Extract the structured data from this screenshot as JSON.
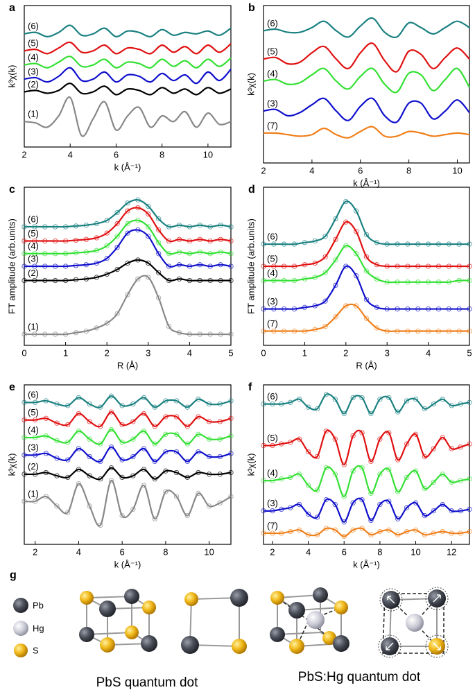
{
  "chart_data": [
    {
      "type": "line",
      "label": "a",
      "y_label": "k³χ(k)",
      "x_label": "k (Å⁻¹)",
      "xlim": [
        2,
        11
      ],
      "ylim": [
        0,
        100
      ],
      "xticks": [
        2,
        4,
        6,
        8,
        10
      ],
      "markers": false,
      "x": [
        2,
        2.5,
        3,
        3.5,
        4,
        4.5,
        5,
        5.5,
        6,
        6.5,
        7,
        7.5,
        8,
        8.5,
        9,
        9.5,
        10,
        10.5,
        11
      ],
      "series": [
        {
          "name": "(6)",
          "color": "#1a8080",
          "values": [
            80,
            81,
            78,
            81,
            86,
            79,
            80,
            84,
            78,
            82,
            81,
            78,
            83,
            79,
            81,
            80,
            82,
            79,
            84
          ]
        },
        {
          "name": "(5)",
          "color": "#e01010",
          "values": [
            68,
            69,
            66,
            70,
            74,
            67,
            68,
            72,
            66,
            70,
            69,
            66,
            72,
            67,
            71,
            66,
            72,
            67,
            73
          ]
        },
        {
          "name": "(4)",
          "color": "#33e033",
          "values": [
            58,
            59,
            56,
            60,
            64,
            57,
            58,
            62,
            56,
            60,
            59,
            56,
            62,
            57,
            61,
            56,
            62,
            57,
            63
          ]
        },
        {
          "name": "(3)",
          "color": "#1010cc",
          "values": [
            48,
            49,
            46,
            50,
            56,
            47,
            48,
            53,
            46,
            51,
            50,
            46,
            52,
            47,
            51,
            45,
            53,
            47,
            55
          ]
        },
        {
          "name": "(2)",
          "color": "#000000",
          "values": [
            39,
            40,
            38,
            40,
            45,
            38,
            39,
            43,
            37,
            41,
            40,
            37,
            42,
            38,
            41,
            37,
            42,
            38,
            41
          ]
        },
        {
          "name": "(1)",
          "color": "#888888",
          "values": [
            18,
            17,
            14,
            22,
            35,
            8,
            20,
            32,
            12,
            22,
            28,
            14,
            22,
            18,
            25,
            14,
            24,
            16,
            18
          ]
        }
      ]
    },
    {
      "type": "line",
      "label": "b",
      "y_label": "k³χ(k)",
      "x_label": "k (Å⁻¹)",
      "xlim": [
        2,
        10.5
      ],
      "ylim": [
        0,
        100
      ],
      "xticks": [
        2,
        4,
        6,
        8,
        10
      ],
      "markers": false,
      "x": [
        2,
        2.5,
        3,
        3.5,
        4,
        4.5,
        5,
        5.5,
        6,
        6.5,
        7,
        7.5,
        8,
        8.5,
        9,
        9.5,
        10,
        10.5
      ],
      "series": [
        {
          "name": "(6)",
          "color": "#1a8080",
          "values": [
            84,
            85,
            83,
            83,
            86,
            90,
            84,
            80,
            87,
            92,
            83,
            80,
            89,
            86,
            82,
            86,
            90,
            86
          ]
        },
        {
          "name": "(5)",
          "color": "#e01010",
          "values": [
            66,
            67,
            63,
            64,
            70,
            74,
            66,
            60,
            70,
            76,
            65,
            58,
            71,
            69,
            60,
            67,
            73,
            66
          ]
        },
        {
          "name": "(4)",
          "color": "#33e033",
          "values": [
            52,
            53,
            50,
            51,
            56,
            60,
            52,
            47,
            55,
            60,
            50,
            45,
            57,
            56,
            46,
            53,
            60,
            48
          ]
        },
        {
          "name": "(3)",
          "color": "#1010cc",
          "values": [
            33,
            34,
            30,
            32,
            37,
            41,
            33,
            27,
            36,
            41,
            30,
            26,
            38,
            38,
            28,
            33,
            40,
            32
          ]
        },
        {
          "name": "(7)",
          "color": "#f07f1a",
          "values": [
            19,
            19,
            18,
            17,
            18,
            22,
            18,
            16,
            20,
            23,
            17,
            17,
            20,
            19,
            17,
            18,
            19,
            18
          ]
        }
      ]
    },
    {
      "type": "line",
      "label": "c",
      "y_label": "FT amplitude (arb.units)",
      "x_label": "R (Å)",
      "xlim": [
        0,
        5
      ],
      "ylim": [
        0,
        100
      ],
      "xticks": [
        0,
        1,
        2,
        3,
        4,
        5
      ],
      "markers": true,
      "x": [
        0,
        0.25,
        0.5,
        0.75,
        1,
        1.25,
        1.5,
        1.75,
        2,
        2.25,
        2.5,
        2.75,
        3,
        3.25,
        3.5,
        3.75,
        4,
        4.25,
        4.5,
        4.75,
        5
      ],
      "series": [
        {
          "name": "(6)",
          "color": "#1a8080",
          "values": [
            75,
            75,
            75,
            75,
            75,
            75.5,
            76,
            77,
            79,
            84,
            90,
            92,
            88,
            80,
            75,
            76,
            75,
            76,
            75,
            76,
            75
          ]
        },
        {
          "name": "(5)",
          "color": "#e01010",
          "values": [
            66,
            66,
            66,
            66,
            66,
            66.5,
            67,
            68,
            71,
            77,
            85,
            87,
            83,
            73,
            66,
            67,
            66,
            67,
            66,
            67,
            66
          ]
        },
        {
          "name": "(4)",
          "color": "#33e033",
          "values": [
            58,
            58,
            58,
            58,
            58,
            58.5,
            59,
            60,
            63,
            69,
            77,
            79,
            75,
            65,
            58,
            59,
            58,
            59,
            58,
            59,
            58
          ]
        },
        {
          "name": "(3)",
          "color": "#1010cc",
          "values": [
            50,
            50,
            50,
            50,
            50,
            50.5,
            51,
            52,
            55,
            62,
            71,
            73,
            69,
            58,
            50,
            51,
            50,
            51,
            50,
            51,
            50
          ]
        },
        {
          "name": "(2)",
          "color": "#000000",
          "values": [
            41,
            41,
            41,
            41,
            41,
            41.5,
            42,
            43,
            45,
            48,
            52,
            54,
            52,
            46,
            41,
            42,
            41,
            41,
            41,
            41,
            41
          ]
        },
        {
          "name": "(1)",
          "color": "#888888",
          "values": [
            7,
            7,
            7,
            7,
            7,
            8,
            9,
            11,
            14,
            20,
            32,
            42,
            43,
            30,
            12,
            8,
            7,
            7,
            7,
            7,
            7
          ]
        }
      ]
    },
    {
      "type": "line",
      "label": "d",
      "y_label": "FT amplitude (arb.units)",
      "x_label": "R (Å)",
      "xlim": [
        0,
        5
      ],
      "ylim": [
        0,
        100
      ],
      "xticks": [
        0,
        1,
        2,
        3,
        4,
        5
      ],
      "markers": true,
      "x": [
        0,
        0.25,
        0.5,
        0.75,
        1,
        1.25,
        1.5,
        1.75,
        2,
        2.25,
        2.5,
        2.75,
        3,
        3.25,
        3.5,
        3.75,
        4,
        4.25,
        4.5,
        4.75,
        5
      ],
      "series": [
        {
          "name": "(6)",
          "color": "#1a8080",
          "values": [
            64,
            64,
            64,
            64,
            65,
            66,
            69,
            80,
            91,
            85,
            70,
            65,
            64,
            64,
            64,
            64,
            64,
            64,
            64,
            64,
            64
          ]
        },
        {
          "name": "(5)",
          "color": "#e01010",
          "values": [
            50,
            50,
            50,
            50,
            51,
            52,
            56,
            67,
            78,
            72,
            56,
            51,
            50,
            50,
            50,
            50,
            50,
            50,
            50,
            50,
            50
          ]
        },
        {
          "name": "(4)",
          "color": "#33e033",
          "values": [
            41,
            41,
            41,
            41,
            42,
            43,
            46,
            54,
            63,
            58,
            47,
            42,
            40,
            40,
            40,
            40,
            40,
            40,
            40,
            41,
            41
          ]
        },
        {
          "name": "(3)",
          "color": "#1010cc",
          "values": [
            23,
            23,
            23,
            23,
            24,
            25,
            28,
            38,
            50,
            44,
            29,
            24,
            23,
            23,
            23,
            23,
            23,
            23,
            23,
            23,
            23
          ]
        },
        {
          "name": "(7)",
          "color": "#f07f1a",
          "values": [
            9,
            9,
            9,
            9,
            9,
            10,
            12,
            18,
            25,
            25,
            17,
            11,
            9,
            9,
            9,
            9,
            9,
            9,
            9,
            9,
            9
          ]
        }
      ]
    },
    {
      "type": "line",
      "label": "e",
      "y_label": "k³χ(k)",
      "x_label": "k (Å⁻¹)",
      "xlim": [
        1.5,
        11
      ],
      "ylim": [
        0,
        100
      ],
      "xticks": [
        2,
        4,
        6,
        8,
        10
      ],
      "markers": true,
      "x": [
        1.5,
        2,
        2.5,
        3,
        3.5,
        4,
        4.5,
        5,
        5.5,
        6,
        6.5,
        7,
        7.5,
        8,
        8.5,
        9,
        9.5,
        10,
        10.5,
        11
      ],
      "series": [
        {
          "name": "(6)",
          "color": "#1a8080",
          "values": [
            89,
            89,
            90,
            88,
            87,
            92,
            88,
            86,
            93,
            87,
            88,
            92,
            86,
            90,
            90,
            86,
            91,
            88,
            88,
            90
          ]
        },
        {
          "name": "(5)",
          "color": "#e01010",
          "values": [
            78,
            78,
            79,
            76,
            75,
            82,
            77,
            74,
            83,
            75,
            77,
            82,
            74,
            80,
            80,
            74,
            80,
            77,
            77,
            79
          ]
        },
        {
          "name": "(4)",
          "color": "#33e033",
          "values": [
            67,
            67,
            68,
            65,
            64,
            71,
            66,
            63,
            72,
            64,
            66,
            71,
            63,
            69,
            69,
            63,
            69,
            66,
            66,
            68
          ]
        },
        {
          "name": "(3)",
          "color": "#1010cc",
          "values": [
            56,
            56,
            57,
            54,
            53,
            60,
            55,
            52,
            61,
            53,
            55,
            60,
            52,
            58,
            58,
            52,
            58,
            55,
            55,
            57
          ]
        },
        {
          "name": "(2)",
          "color": "#000000",
          "values": [
            44,
            44,
            45,
            43,
            42,
            47,
            43,
            41,
            48,
            42,
            43,
            47,
            41,
            46,
            45,
            42,
            45,
            44,
            44,
            45
          ]
        },
        {
          "name": "(1)",
          "color": "#888888",
          "values": [
            27,
            27,
            30,
            24,
            20,
            38,
            24,
            12,
            40,
            18,
            22,
            37,
            16,
            33,
            30,
            18,
            32,
            24,
            26,
            30
          ]
        }
      ]
    },
    {
      "type": "line",
      "label": "f",
      "y_label": "k³χ(k)",
      "x_label": "k (Å⁻¹)",
      "xlim": [
        1.5,
        13
      ],
      "ylim": [
        0,
        100
      ],
      "xticks": [
        2,
        4,
        6,
        8,
        10,
        12
      ],
      "markers": true,
      "x": [
        1.5,
        2,
        2.5,
        3,
        3.5,
        4,
        4.5,
        5,
        5.5,
        6,
        6.5,
        7,
        7.5,
        8,
        8.5,
        9,
        9.5,
        10,
        10.5,
        11,
        11.5,
        12,
        12.5,
        13
      ],
      "series": [
        {
          "name": "(6)",
          "color": "#1a8080",
          "values": [
            88,
            88,
            88,
            89,
            91,
            86,
            85,
            94,
            91,
            82,
            92,
            92,
            82,
            91,
            92,
            83,
            90,
            91,
            85,
            88,
            91,
            87,
            88,
            89
          ]
        },
        {
          "name": "(5)",
          "color": "#e01010",
          "values": [
            62,
            62,
            63,
            64,
            66,
            58,
            55,
            71,
            66,
            50,
            68,
            70,
            52,
            66,
            70,
            53,
            63,
            69,
            55,
            60,
            67,
            60,
            61,
            63
          ]
        },
        {
          "name": "(4)",
          "color": "#33e033",
          "values": [
            40,
            40,
            41,
            42,
            44,
            37,
            34,
            48,
            44,
            30,
            46,
            48,
            32,
            44,
            47,
            33,
            42,
            46,
            35,
            39,
            44,
            39,
            40,
            41
          ]
        },
        {
          "name": "(3)",
          "color": "#1010cc",
          "values": [
            21,
            21,
            22,
            23,
            25,
            19,
            17,
            28,
            25,
            14,
            26,
            28,
            15,
            25,
            27,
            16,
            23,
            26,
            18,
            21,
            25,
            21,
            21,
            22
          ]
        },
        {
          "name": "(7)",
          "color": "#f07f1a",
          "values": [
            7,
            7,
            7,
            8,
            9,
            6,
            6,
            10,
            9,
            5,
            9,
            10,
            6,
            8,
            9,
            6,
            8,
            9,
            6,
            7,
            8,
            7,
            7,
            8
          ]
        }
      ]
    }
  ],
  "figure_g": {
    "label": "g",
    "legend": [
      "Pb",
      "Hg",
      "S"
    ],
    "captions": [
      "PbS quantum dot",
      "PbS:Hg quantum dot"
    ]
  }
}
